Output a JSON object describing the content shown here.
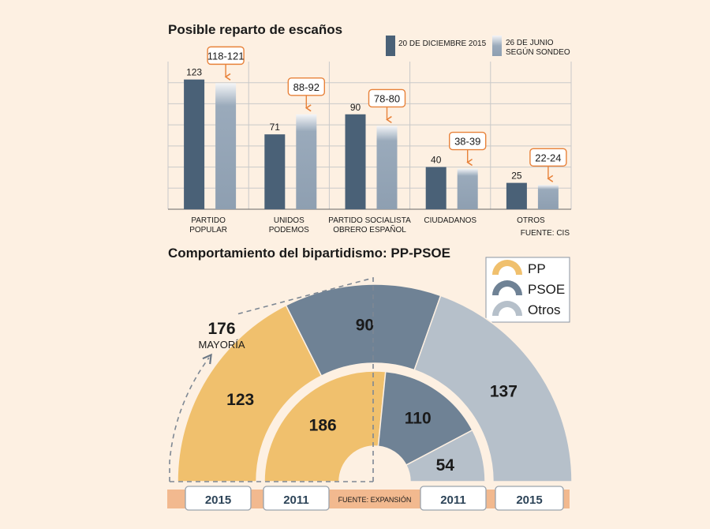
{
  "chart_data": [
    {
      "type": "bar",
      "title": "Posible reparto de escaños",
      "source": "FUENTE: CIS",
      "categories": [
        [
          "PARTIDO",
          "POPULAR"
        ],
        [
          "UNIDOS",
          "PODEMOS"
        ],
        [
          "PARTIDO SOCIALISTA",
          "OBRERO ESPAÑOL"
        ],
        [
          "CIUDADANOS"
        ],
        [
          "OTROS"
        ]
      ],
      "series": [
        {
          "name": "20 DE DICIEMBRE 2015",
          "legend_lines": [
            "20 DE DICIEMBRE 2015"
          ],
          "color": "#4a6177",
          "values": [
            123,
            71,
            90,
            40,
            25
          ]
        },
        {
          "name": "26 DE JUNIO SEGÚN SONDEO",
          "legend_lines": [
            "26 DE JUNIO",
            "SEGÚN SONDEO"
          ],
          "color": "#9aaabb",
          "values": [
            119.5,
            90,
            79,
            38.5,
            23
          ],
          "labels": [
            "118-121",
            "88-92",
            "78-80",
            "38-39",
            "22-24"
          ]
        }
      ],
      "ylim": [
        0,
        140
      ]
    },
    {
      "type": "pie",
      "subtype": "semicircle",
      "title": "Comportamiento del bipartidismo: PP-PSOE",
      "source": "FUENTE: EXPANSIÓN",
      "legend": [
        {
          "label": "PP",
          "color": "#f0c06d"
        },
        {
          "label": "PSOE",
          "color": "#6f8295"
        },
        {
          "label": "Otros",
          "color": "#b6c0ca"
        }
      ],
      "majority": {
        "value": "176",
        "label": "MAYORÍA"
      },
      "rings": [
        {
          "year": "2015",
          "total": 350,
          "slices": [
            {
              "party": "PP",
              "value": 123
            },
            {
              "party": "PSOE",
              "value": 90
            },
            {
              "party": "Otros",
              "value": 137
            }
          ]
        },
        {
          "year": "2011",
          "total": 350,
          "slices": [
            {
              "party": "PP",
              "value": 186
            },
            {
              "party": "PSOE",
              "value": 110
            },
            {
              "party": "Otros",
              "value": 54
            }
          ]
        }
      ],
      "year_tabs": [
        "2015",
        "2011",
        "2011",
        "2015"
      ]
    }
  ]
}
